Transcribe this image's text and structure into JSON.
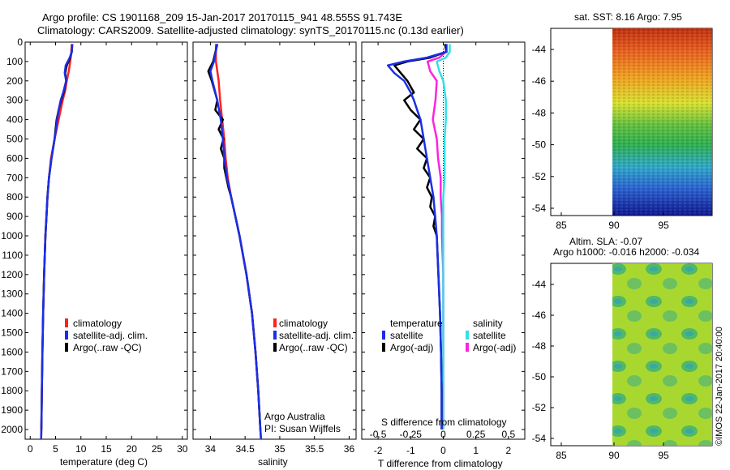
{
  "header": {
    "line1": "Argo profile: CS 1901168_209 15-Jan-2017 20170115_941 48.555S 91.743E",
    "line2": "Climatology: CARS2009. Satellite-adjusted climatology: synTS_20170115.nc (0.13d earlier)"
  },
  "colors": {
    "climatology": "#ff2020",
    "satellite": "#1a2ee8",
    "argo": "#000000",
    "salinity_sat": "#33e0e8",
    "salinity_argo": "#ff22e0"
  },
  "chart_data": [
    {
      "type": "line",
      "name": "temperature-profile",
      "xlabel": "temperature (deg C)",
      "xlim": [
        -1,
        31
      ],
      "ylim": [
        2050,
        0
      ],
      "xticks": [
        "0",
        "5",
        "10",
        "15",
        "20",
        "25",
        "30"
      ],
      "yticks": [
        "0",
        "100",
        "200",
        "300",
        "400",
        "500",
        "600",
        "700",
        "800",
        "900",
        "1000",
        "1100",
        "1200",
        "1300",
        "1400",
        "1500",
        "1600",
        "1700",
        "1800",
        "1900",
        "2000"
      ],
      "legend": [
        "climatology",
        "satellite-adj. clim.",
        "Argo(..raw -QC)"
      ],
      "legend_position": "bottom-center",
      "series": [
        {
          "name": "climatology",
          "depth": [
            10,
            50,
            100,
            150,
            200,
            250,
            300,
            400,
            500,
            600,
            700,
            800,
            900,
            1000,
            1200,
            1400,
            1600,
            1800,
            2000,
            2050
          ],
          "values": [
            8.2,
            8.1,
            7.9,
            7.6,
            7.2,
            6.9,
            6.4,
            5.6,
            4.8,
            4.1,
            3.7,
            3.4,
            3.2,
            3.0,
            2.75,
            2.55,
            2.4,
            2.3,
            2.2,
            2.15
          ]
        },
        {
          "name": "satellite-adj. clim.",
          "depth": [
            10,
            50,
            80,
            120,
            160,
            200,
            260,
            300,
            350,
            400,
            450,
            500,
            600,
            700,
            800,
            900,
            1000,
            1200,
            1400,
            1600,
            1800,
            2000,
            2050
          ],
          "values": [
            8.3,
            8.2,
            7.8,
            7.0,
            6.8,
            7.1,
            6.5,
            6.0,
            5.6,
            5.3,
            5.1,
            4.8,
            4.2,
            3.7,
            3.4,
            3.2,
            3.0,
            2.75,
            2.55,
            2.4,
            2.3,
            2.2,
            2.15
          ]
        },
        {
          "name": "Argo(..raw -QC)",
          "depth": [
            10,
            50,
            80,
            120,
            160,
            200,
            260,
            300,
            350,
            400,
            450,
            500,
            600,
            700,
            800,
            900,
            1000,
            1200,
            1400,
            1600,
            1800,
            2000
          ],
          "values": [
            8.3,
            8.2,
            7.9,
            7.2,
            6.9,
            7.1,
            6.6,
            6.1,
            5.6,
            5.2,
            5.0,
            4.8,
            4.2,
            3.7,
            3.4,
            3.2,
            3.0,
            2.75,
            2.55,
            2.4,
            2.3,
            2.2
          ]
        }
      ],
      "annotations": []
    },
    {
      "type": "line",
      "name": "salinity-profile",
      "xlabel": "salinity",
      "xlim": [
        33.75,
        36.1
      ],
      "ylim": [
        2050,
        0
      ],
      "xticks": [
        "34",
        "34.5",
        "35",
        "35.5",
        "36"
      ],
      "legend": [
        "climatology",
        "satellite-adj. clim.",
        "Argo(..raw -QC)"
      ],
      "legend_position": "bottom-right",
      "series": [
        {
          "name": "climatology",
          "depth": [
            10,
            100,
            200,
            300,
            400,
            500,
            600,
            700,
            800,
            900,
            1000,
            1200,
            1400,
            1600,
            1800,
            2000,
            2050
          ],
          "values": [
            34.08,
            34.08,
            34.12,
            34.14,
            34.17,
            34.2,
            34.22,
            34.25,
            34.3,
            34.36,
            34.42,
            34.52,
            34.6,
            34.65,
            34.69,
            34.72,
            34.73
          ]
        },
        {
          "name": "satellite-adj. clim.",
          "depth": [
            10,
            100,
            150,
            200,
            300,
            400,
            500,
            600,
            700,
            800,
            900,
            1000,
            1200,
            1400,
            1600,
            1800,
            2000,
            2050
          ],
          "values": [
            34.1,
            34.05,
            34.0,
            34.03,
            34.1,
            34.15,
            34.18,
            34.2,
            34.24,
            34.3,
            34.36,
            34.42,
            34.52,
            34.6,
            34.65,
            34.69,
            34.72,
            34.73
          ]
        },
        {
          "name": "Argo(..raw -QC)",
          "depth": [
            10,
            100,
            150,
            200,
            300,
            350,
            400,
            450,
            500,
            550,
            600,
            650,
            700,
            750,
            800,
            900,
            1000,
            1200,
            1400,
            1600,
            1800,
            2000
          ],
          "values": [
            34.1,
            34.04,
            33.97,
            34.02,
            34.1,
            34.07,
            34.18,
            34.12,
            34.19,
            34.15,
            34.2,
            34.2,
            34.23,
            34.26,
            34.3,
            34.36,
            34.42,
            34.52,
            34.6,
            34.65,
            34.69,
            34.72
          ]
        }
      ],
      "annotations": [
        "Argo Australia",
        "PI: Susan Wijffels"
      ]
    },
    {
      "type": "line",
      "name": "difference-profile",
      "xlabel": "T difference from climatology",
      "xlabel_top": "S difference from climatology",
      "xlim": [
        -2.5,
        2.5
      ],
      "xticks": [
        "-2",
        "-1",
        "0",
        "1",
        "2"
      ],
      "xticks_top": [
        "-0.5",
        "-0.25",
        "0",
        "0.25",
        "0.5"
      ],
      "legend_headers": [
        "temperature",
        "salinity"
      ],
      "legend": [
        "satellite",
        "Argo(-adj)",
        "satellite",
        "Argo(-adj)"
      ],
      "legend_position": "bottom",
      "series": [
        {
          "name": "temperature satellite",
          "depth": [
            10,
            50,
            80,
            100,
            120,
            160,
            200,
            260,
            300,
            350,
            400,
            500,
            600,
            700,
            800,
            900,
            1000,
            1200,
            1400,
            1600,
            1800,
            2000
          ],
          "values": [
            0.1,
            0.1,
            -0.5,
            -1.2,
            -1.7,
            -1.5,
            -1.2,
            -1.0,
            -0.9,
            -0.8,
            -0.7,
            -0.6,
            -0.5,
            -0.4,
            -0.3,
            -0.25,
            -0.2,
            -0.15,
            -0.1,
            -0.07,
            -0.05,
            -0.05
          ]
        },
        {
          "name": "temperature Argo(-adj)",
          "depth": [
            10,
            50,
            80,
            100,
            120,
            160,
            200,
            260,
            300,
            350,
            400,
            450,
            500,
            550,
            600,
            650,
            700,
            750,
            800,
            850,
            900,
            950,
            1000,
            1200,
            1400,
            1600,
            1800,
            2000
          ],
          "values": [
            0.05,
            0.1,
            -0.4,
            -1.1,
            -1.5,
            -1.3,
            -1.1,
            -0.9,
            -1.2,
            -1.0,
            -0.7,
            -0.9,
            -0.6,
            -0.8,
            -0.5,
            -0.6,
            -0.4,
            -0.5,
            -0.35,
            -0.4,
            -0.25,
            -0.3,
            -0.2,
            -0.15,
            -0.1,
            -0.07,
            -0.05,
            -0.05
          ]
        },
        {
          "name": "salinity satellite",
          "depth": [
            10,
            50,
            80,
            100,
            150,
            200,
            300,
            400,
            500,
            600,
            700,
            800,
            900,
            1000,
            1200,
            1400,
            1600,
            1800,
            2000
          ],
          "values": [
            0.05,
            0.05,
            0.02,
            -0.05,
            -0.03,
            0.0,
            0.02,
            0.02,
            0.01,
            0.01,
            0.01,
            0.0,
            0.0,
            0.0,
            0.0,
            0.0,
            0.0,
            0.0,
            0.0
          ]
        },
        {
          "name": "salinity Argo(-adj)",
          "depth": [
            10,
            50,
            80,
            100,
            150,
            200,
            300,
            400,
            500,
            600,
            700,
            800,
            900,
            1000,
            1200,
            1400,
            1600,
            1800,
            2000
          ],
          "values": [
            0.02,
            0.02,
            -0.03,
            -0.12,
            -0.1,
            -0.05,
            -0.06,
            -0.08,
            -0.05,
            -0.04,
            -0.02,
            -0.02,
            -0.01,
            -0.01,
            0.0,
            0.0,
            0.0,
            0.0,
            0.0
          ]
        }
      ]
    },
    {
      "type": "heatmap",
      "name": "sst-map",
      "title": "sat. SST: 8.16 Argo: 7.95",
      "xticks": [
        "85",
        "90",
        "95"
      ],
      "yticks": [
        "-44",
        "-46",
        "-48",
        "-50",
        "-52",
        "-54"
      ]
    },
    {
      "type": "heatmap",
      "name": "sla-map",
      "title_line1": "Altim. SLA: -0.07",
      "title_line2": "Argo h1000: -0.016 h2000: -0.034",
      "xticks": [
        "85",
        "90",
        "95"
      ],
      "yticks": [
        "-44",
        "-46",
        "-48",
        "-50",
        "-52",
        "-54"
      ]
    }
  ],
  "stamp": "©IMOS 22-Jan-2017 20:40:00"
}
